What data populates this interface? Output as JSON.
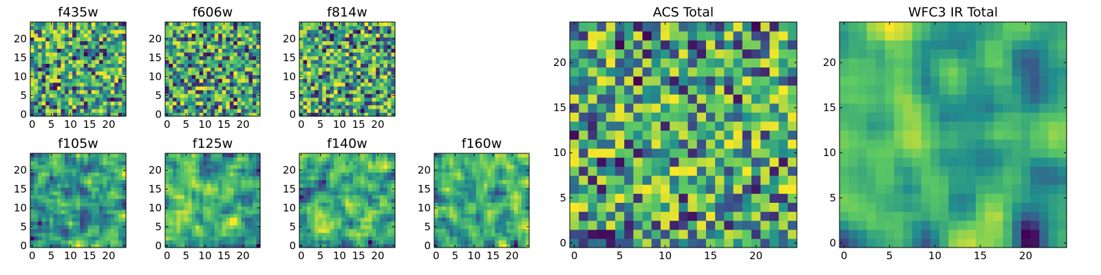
{
  "figure": {
    "colormap": [
      "#440154",
      "#3b528b",
      "#21908d",
      "#5dc963",
      "#fde725"
    ]
  },
  "chart_data": [
    {
      "type": "heatmap",
      "title": "f435w",
      "size": 25,
      "seed": 11,
      "smooth": 0,
      "xticks": [
        0,
        5,
        10,
        15,
        20
      ],
      "yticks": [
        0,
        5,
        10,
        15,
        20
      ],
      "xlim": [
        -0.5,
        24.5
      ],
      "ylim": [
        -0.5,
        24.5
      ]
    },
    {
      "type": "heatmap",
      "title": "f606w",
      "size": 25,
      "seed": 23,
      "smooth": 0,
      "xticks": [
        0,
        5,
        10,
        15,
        20
      ],
      "yticks": [
        0,
        5,
        10,
        15,
        20
      ],
      "xlim": [
        -0.5,
        24.5
      ],
      "ylim": [
        -0.5,
        24.5
      ]
    },
    {
      "type": "heatmap",
      "title": "f814w",
      "size": 25,
      "seed": 37,
      "smooth": 0,
      "xticks": [
        0,
        5,
        10,
        15,
        20
      ],
      "yticks": [
        0,
        5,
        10,
        15,
        20
      ],
      "xlim": [
        -0.5,
        24.5
      ],
      "ylim": [
        -0.5,
        24.5
      ]
    },
    {
      "type": "heatmap",
      "title": "f105w",
      "size": 25,
      "seed": 41,
      "smooth": 1,
      "xticks": [
        0,
        5,
        10,
        15,
        20
      ],
      "yticks": [
        0,
        5,
        10,
        15,
        20
      ],
      "xlim": [
        -0.5,
        24.5
      ],
      "ylim": [
        -0.5,
        24.5
      ]
    },
    {
      "type": "heatmap",
      "title": "f125w",
      "size": 25,
      "seed": 53,
      "smooth": 1,
      "xticks": [
        0,
        5,
        10,
        15,
        20
      ],
      "yticks": [
        0,
        5,
        10,
        15,
        20
      ],
      "xlim": [
        -0.5,
        24.5
      ],
      "ylim": [
        -0.5,
        24.5
      ]
    },
    {
      "type": "heatmap",
      "title": "f140w",
      "size": 25,
      "seed": 67,
      "smooth": 1,
      "xticks": [
        0,
        5,
        10,
        15,
        20
      ],
      "yticks": [
        0,
        5,
        10,
        15,
        20
      ],
      "xlim": [
        -0.5,
        24.5
      ],
      "ylim": [
        -0.5,
        24.5
      ]
    },
    {
      "type": "heatmap",
      "title": "f160w",
      "size": 25,
      "seed": 79,
      "smooth": 1,
      "xticks": [
        0,
        5,
        10,
        15,
        20
      ],
      "yticks": [
        0,
        5,
        10,
        15,
        20
      ],
      "xlim": [
        -0.5,
        24.5
      ],
      "ylim": [
        -0.5,
        24.5
      ]
    },
    {
      "type": "heatmap",
      "title": "ACS Total",
      "size": 25,
      "seed": 97,
      "smooth": 0,
      "xticks": [
        0,
        5,
        10,
        15,
        20
      ],
      "yticks": [
        0,
        5,
        10,
        15,
        20
      ],
      "xlim": [
        -0.5,
        24.5
      ],
      "ylim": [
        -0.5,
        24.5
      ]
    },
    {
      "type": "heatmap",
      "title": "WFC3 IR Total",
      "size": 25,
      "seed": 131,
      "smooth": 2,
      "xticks": [
        0,
        5,
        10,
        15,
        20
      ],
      "yticks": [
        0,
        5,
        10,
        15,
        20
      ],
      "xlim": [
        -0.5,
        24.5
      ],
      "ylim": [
        -0.5,
        24.5
      ]
    }
  ]
}
